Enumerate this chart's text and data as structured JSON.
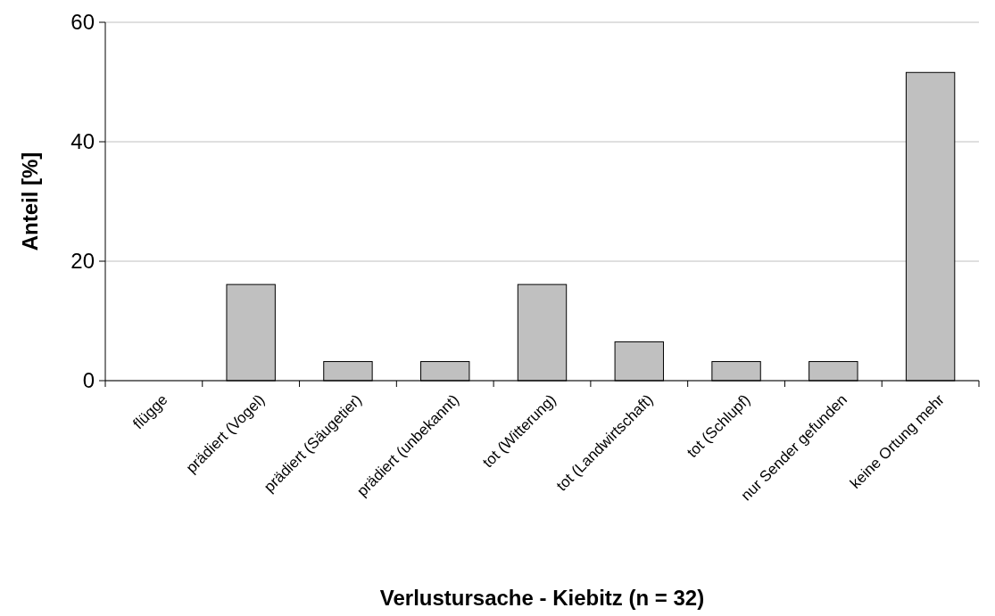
{
  "chart_data": {
    "type": "bar",
    "xlabel": "Verlustursache - Kiebitz (n = 32)",
    "ylabel": "Anteil [%]",
    "categories": [
      "flügge",
      "prädiert (Vogel)",
      "prädiert (Säugetier)",
      "prädiert (unbekannt)",
      "tot (Witterung)",
      "tot (Landwirtschaft)",
      "tot (Schlupf)",
      "nur Sender gefunden",
      "keine Ortung mehr"
    ],
    "values": [
      0,
      16.1,
      3.2,
      3.2,
      16.1,
      6.5,
      3.2,
      3.2,
      51.6
    ],
    "color": "#c0c0c0",
    "ylim": [
      0,
      60
    ],
    "yticks": [
      0,
      20,
      40,
      60
    ],
    "grid": "y"
  }
}
